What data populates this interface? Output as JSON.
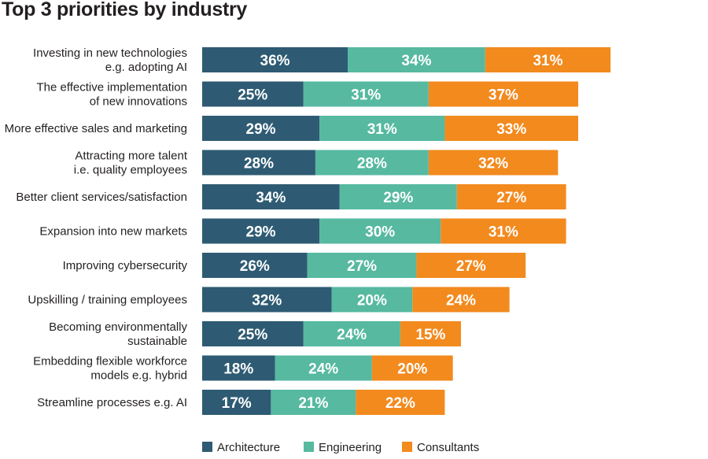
{
  "chart_data": {
    "type": "bar",
    "orientation": "horizontal",
    "stacked": true,
    "title": "Top 3 priorities by industry",
    "categories": [
      [
        "Investing in new technologies",
        "e.g. adopting AI"
      ],
      [
        "The effective implementation",
        "of new innovations"
      ],
      [
        "More effective sales and marketing"
      ],
      [
        "Attracting more talent",
        "i.e. quality employees"
      ],
      [
        "Better client services/satisfaction"
      ],
      [
        "Expansion into new markets"
      ],
      [
        "Improving cybersecurity"
      ],
      [
        "Upskilling / training employees"
      ],
      [
        "Becoming environmentally",
        "sustainable"
      ],
      [
        "Embedding flexible workforce",
        "models e.g. hybrid"
      ],
      [
        "Streamline processes e.g. AI"
      ]
    ],
    "series": [
      {
        "name": "Architecture",
        "color": "#2e5b73",
        "values": [
          36,
          25,
          29,
          28,
          34,
          29,
          26,
          32,
          25,
          18,
          17
        ]
      },
      {
        "name": "Engineering",
        "color": "#56b9a0",
        "values": [
          34,
          31,
          31,
          28,
          29,
          30,
          27,
          20,
          24,
          24,
          21
        ]
      },
      {
        "name": "Consultants",
        "color": "#f28a1e",
        "values": [
          31,
          37,
          33,
          32,
          27,
          31,
          27,
          24,
          15,
          20,
          22
        ]
      }
    ],
    "value_suffix": "%",
    "legend_position": "bottom"
  }
}
